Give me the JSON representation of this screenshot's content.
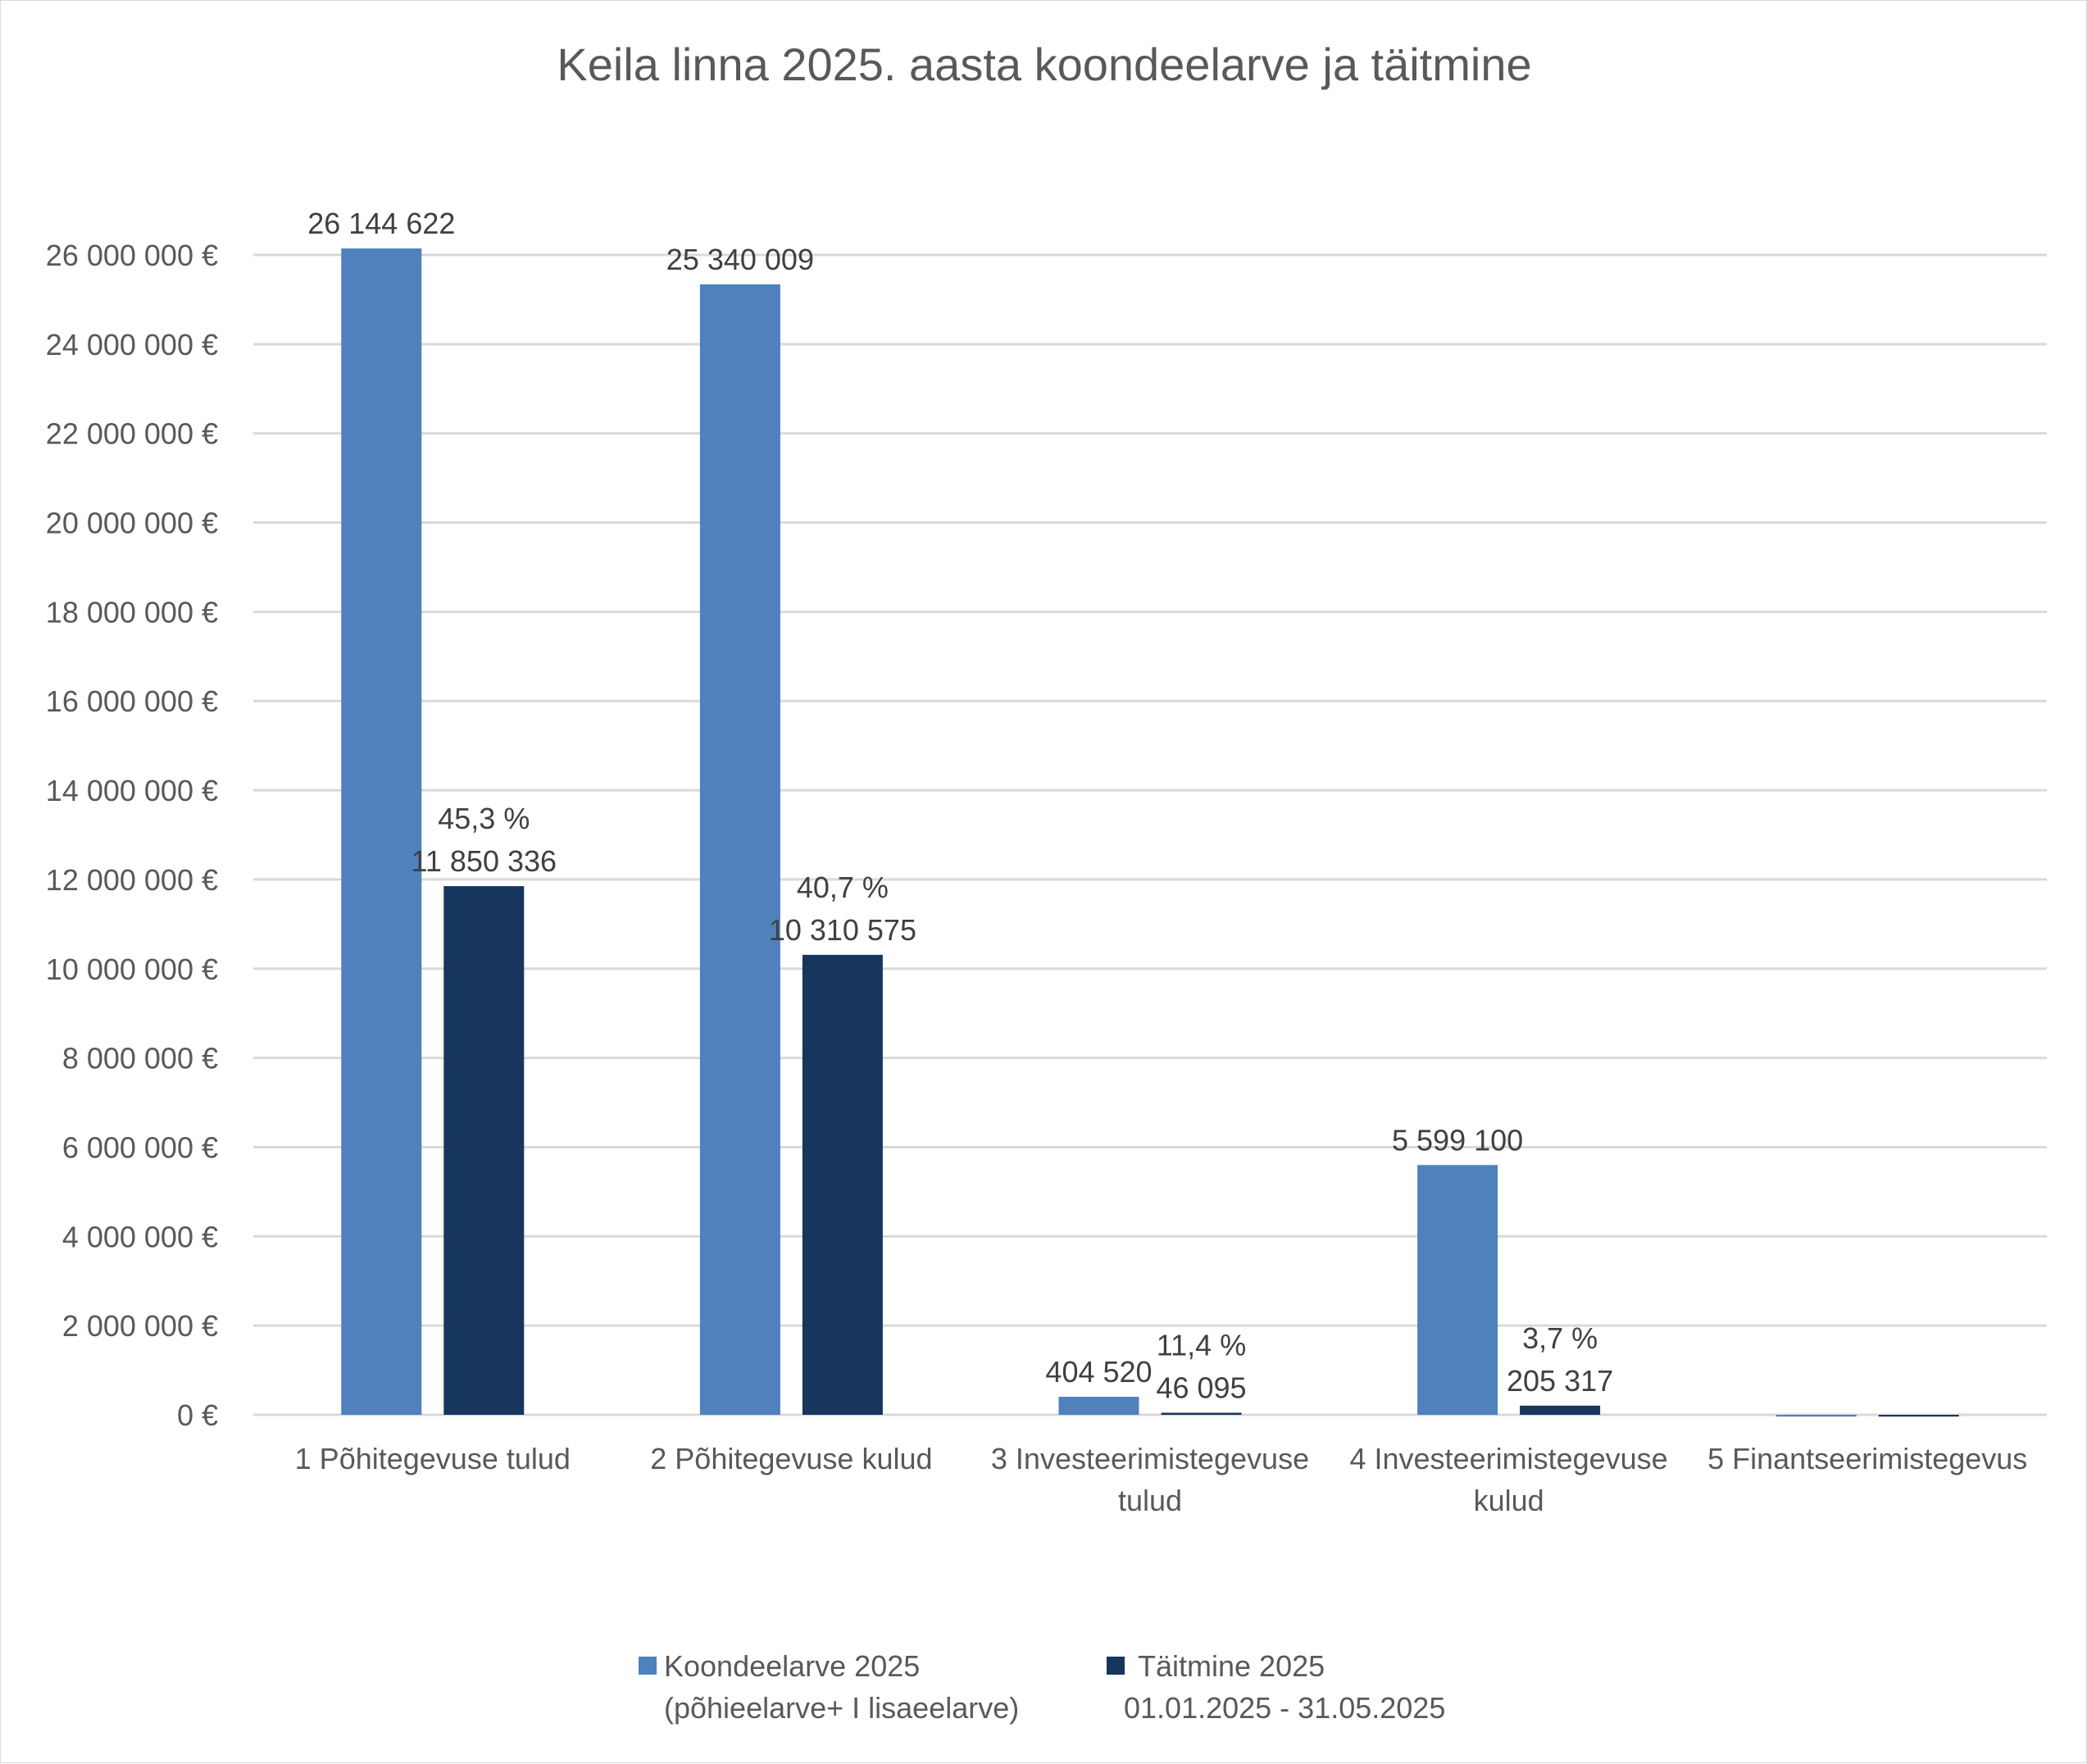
{
  "chart_data": {
    "type": "bar",
    "title": "Keila linna 2025. aasta koondeelarve ja täitmine",
    "xlabel": "",
    "ylabel": "",
    "ylim": [
      0,
      26000000
    ],
    "grid": true,
    "legend_position": "bottom",
    "y_ticks": [
      "0 €",
      "2 000 000 €",
      "4 000 000 €",
      "6 000 000 €",
      "8 000 000 €",
      "10 000 000 €",
      "12 000 000 €",
      "14 000 000 €",
      "16 000 000 €",
      "18 000 000 €",
      "20 000 000 €",
      "22 000 000 €",
      "24 000 000 €",
      "26 000 000 €"
    ],
    "y_tick_values": [
      0,
      2000000,
      4000000,
      6000000,
      8000000,
      10000000,
      12000000,
      14000000,
      16000000,
      18000000,
      20000000,
      22000000,
      24000000,
      26000000
    ],
    "categories": [
      [
        "1 Põhitegevuse tulud"
      ],
      [
        "2 Põhitegevuse kulud"
      ],
      [
        "3 Investeerimistegevuse",
        "tulud"
      ],
      [
        "4 Investeerimistegevuse",
        "kulud"
      ],
      [
        "5 Finantseerimistegevus"
      ]
    ],
    "series": [
      {
        "name": [
          "Koondeelarve 2025",
          "(põhieelarve+ I lisaeelarve)"
        ],
        "color": "#4f81bd",
        "values": [
          26144622,
          25340009,
          404520,
          5599100,
          -40000
        ],
        "labels": [
          [
            "26 144 622"
          ],
          [
            "25 340 009"
          ],
          [
            "404 520"
          ],
          [
            "5 599 100"
          ],
          []
        ]
      },
      {
        "name": [
          "Täitmine 2025",
          "01.01.2025 - 31.05.2025"
        ],
        "color": "#17365d",
        "values": [
          11850336,
          10310575,
          46095,
          205317,
          -40000
        ],
        "labels": [
          [
            "45,3 %",
            "11 850 336"
          ],
          [
            "40,7 %",
            "10 310 575"
          ],
          [
            "11,4 %",
            "46 095"
          ],
          [
            "3,7 %",
            "205 317"
          ],
          []
        ]
      }
    ]
  }
}
